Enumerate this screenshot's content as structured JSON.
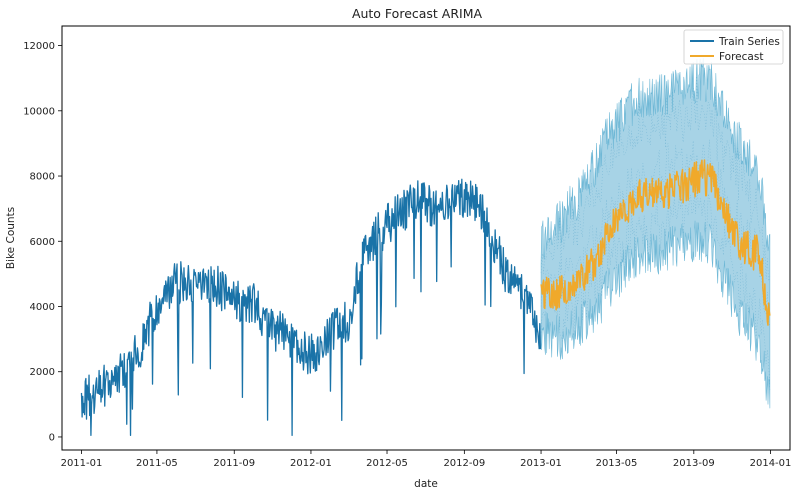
{
  "chart_data": {
    "type": "line",
    "title": "Auto Forecast ARIMA",
    "xlabel": "date",
    "ylabel": "Bike Counts",
    "xlim": [
      "2010-12-01",
      "2014-02-01"
    ],
    "ylim": [
      -400,
      12600
    ],
    "x_ticks": [
      "2011-01",
      "2011-05",
      "2011-09",
      "2012-01",
      "2012-05",
      "2012-09",
      "2013-01",
      "2013-05",
      "2013-09",
      "2014-01"
    ],
    "y_ticks": [
      0,
      2000,
      4000,
      6000,
      8000,
      10000,
      12000
    ],
    "grid": false,
    "legend": {
      "placement": "top-right",
      "entries": [
        "Train Series",
        "Forecast"
      ]
    },
    "colors": {
      "train": "#1a73a8",
      "forecast": "#f0a92b",
      "confidence": "#a7d3e6",
      "confidence_edge": "#6fb8d6"
    },
    "series": [
      {
        "name": "Train Series",
        "x": [
          "2011-01-01",
          "2011-01-15",
          "2011-02-01",
          "2011-02-15",
          "2011-03-01",
          "2011-03-15",
          "2011-04-01",
          "2011-04-15",
          "2011-05-01",
          "2011-05-15",
          "2011-06-01",
          "2011-06-15",
          "2011-07-01",
          "2011-07-15",
          "2011-08-01",
          "2011-08-15",
          "2011-09-01",
          "2011-09-15",
          "2011-10-01",
          "2011-10-15",
          "2011-11-01",
          "2011-11-15",
          "2011-12-01",
          "2011-12-15",
          "2012-01-01",
          "2012-01-15",
          "2012-02-01",
          "2012-02-15",
          "2012-03-01",
          "2012-03-15",
          "2012-04-01",
          "2012-04-15",
          "2012-05-01",
          "2012-05-15",
          "2012-06-01",
          "2012-06-15",
          "2012-07-01",
          "2012-07-15",
          "2012-08-01",
          "2012-08-15",
          "2012-09-01",
          "2012-09-15",
          "2012-10-01",
          "2012-10-15",
          "2012-11-01",
          "2012-11-15",
          "2012-12-01",
          "2012-12-15",
          "2012-12-31"
        ],
        "y": [
          985,
          1300,
          1500,
          1700,
          1800,
          2300,
          2600,
          3300,
          4000,
          4500,
          4700,
          4800,
          4600,
          4500,
          4700,
          4400,
          4300,
          4100,
          4100,
          3700,
          3300,
          3200,
          3000,
          2700,
          2500,
          2600,
          3200,
          3400,
          3600,
          4900,
          5800,
          6200,
          6500,
          6800,
          7000,
          7200,
          7300,
          7000,
          7100,
          7200,
          7400,
          7300,
          6800,
          6200,
          5200,
          4800,
          4500,
          3900,
          2900
        ]
      },
      {
        "name": "Forecast",
        "x": [
          "2013-01-01",
          "2013-01-15",
          "2013-02-01",
          "2013-02-15",
          "2013-03-01",
          "2013-03-15",
          "2013-04-01",
          "2013-04-15",
          "2013-05-01",
          "2013-05-15",
          "2013-06-01",
          "2013-06-15",
          "2013-07-01",
          "2013-07-15",
          "2013-08-01",
          "2013-08-15",
          "2013-09-01",
          "2013-09-15",
          "2013-10-01",
          "2013-10-15",
          "2013-11-01",
          "2013-11-15",
          "2013-12-01",
          "2013-12-15",
          "2013-12-31"
        ],
        "y": [
          4300,
          4500,
          4400,
          4700,
          4800,
          5100,
          5500,
          6100,
          6600,
          7000,
          7300,
          7400,
          7400,
          7500,
          7600,
          7700,
          7900,
          8000,
          7800,
          7200,
          6300,
          5900,
          5700,
          5600,
          3300
        ],
        "lower": [
          3300,
          3100,
          3000,
          3200,
          3400,
          3700,
          4000,
          4400,
          4800,
          5200,
          5500,
          5600,
          5600,
          5700,
          5800,
          5900,
          6000,
          6000,
          5800,
          5000,
          4200,
          3700,
          3300,
          2800,
          1000
        ],
        "upper": [
          6000,
          6400,
          6600,
          7000,
          7300,
          7800,
          8400,
          9100,
          9600,
          10000,
          10300,
          10400,
          10400,
          10500,
          10600,
          10700,
          10900,
          11000,
          10800,
          10100,
          9300,
          8900,
          8500,
          8000,
          5800
        ]
      }
    ]
  }
}
